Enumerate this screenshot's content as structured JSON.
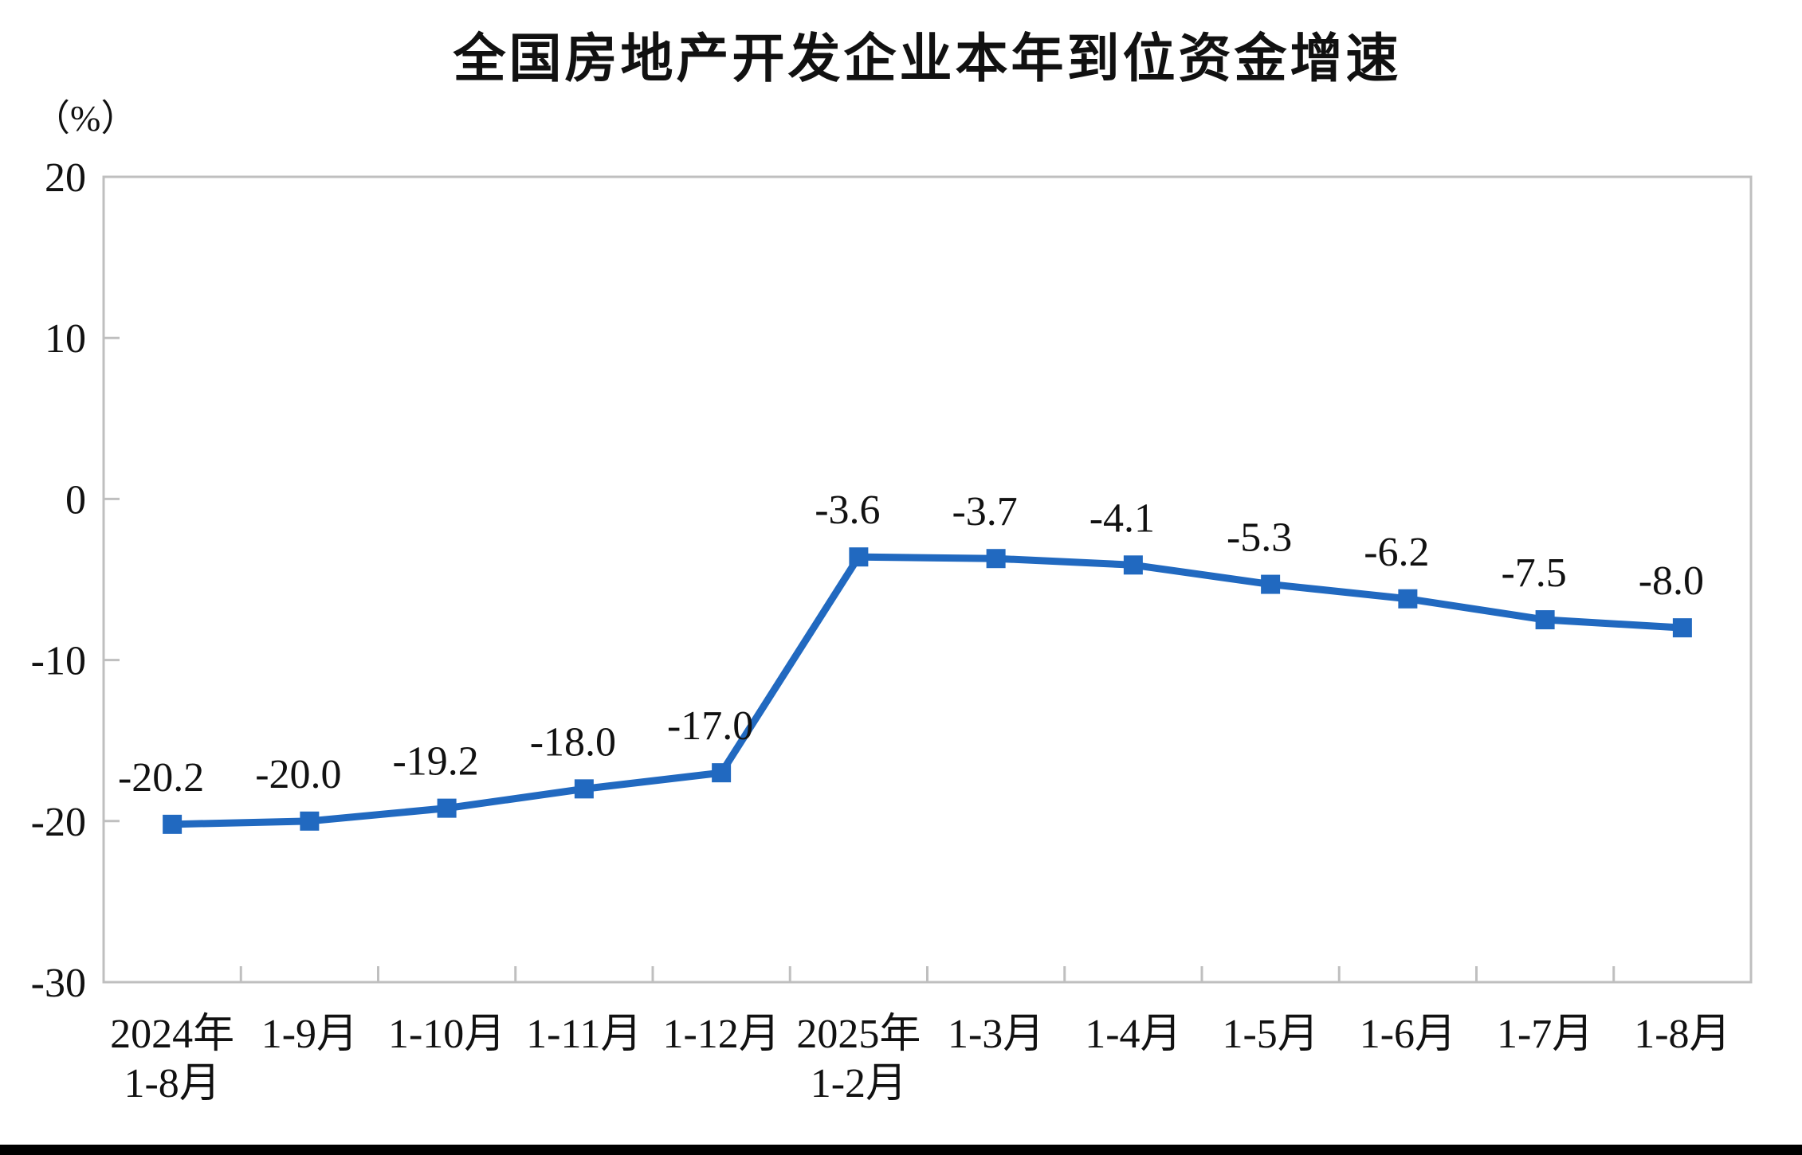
{
  "chart_data": {
    "type": "line",
    "title": "全国房地产开发企业本年到位资金增速",
    "unit_label": "（%）",
    "categories": [
      "2024年\n1-8月",
      "1-9月",
      "1-10月",
      "1-11月",
      "1-12月",
      "2025年\n1-2月",
      "1-3月",
      "1-4月",
      "1-5月",
      "1-6月",
      "1-7月",
      "1-8月"
    ],
    "values": [
      -20.2,
      -20.0,
      -19.2,
      -18.0,
      -17.0,
      -3.6,
      -3.7,
      -4.1,
      -5.3,
      -6.2,
      -7.5,
      -8.0
    ],
    "data_labels": [
      "-20.2",
      "-20.0",
      "-19.2",
      "-18.0",
      "-17.0",
      "-3.6",
      "-3.7",
      "-4.1",
      "-5.3",
      "-6.2",
      "-7.5",
      "-8.0"
    ],
    "y_ticks": [
      20,
      10,
      0,
      -10,
      -20,
      -30
    ],
    "ylim": [
      -30,
      20
    ],
    "grid": false,
    "legend": "none",
    "marker": "square",
    "colors": {
      "line": "#2169C0",
      "axis": "#BFBFBF",
      "text": "#111111",
      "divider": "#000000"
    }
  }
}
